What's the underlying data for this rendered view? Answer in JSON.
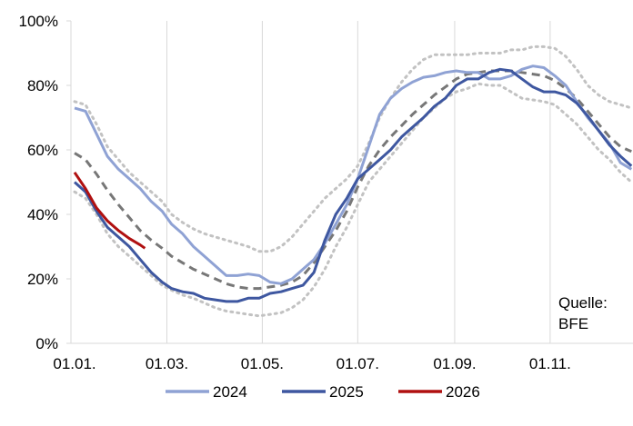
{
  "chart_data": {
    "type": "line",
    "title": "",
    "xlabel": "",
    "ylabel": "",
    "x_tick_labels": [
      "01.01.",
      "01.03.",
      "01.05.",
      "01.07.",
      "01.09.",
      "01.11."
    ],
    "y_tick_labels": [
      "0%",
      "20%",
      "40%",
      "60%",
      "80%",
      "100%"
    ],
    "ylim": [
      0,
      100
    ],
    "y_unit": "%",
    "grid": "vertical",
    "legend_position": "bottom",
    "source_text": [
      "Quelle:",
      "BFE"
    ],
    "series": [
      {
        "name": "2024",
        "color": "#8fa2d4",
        "style": "solid",
        "points": [
          [
            "01.01.",
            73
          ],
          [
            "08.01.",
            72
          ],
          [
            "15.01.",
            65
          ],
          [
            "22.01.",
            58
          ],
          [
            "29.01.",
            54
          ],
          [
            "05.02.",
            51
          ],
          [
            "12.02.",
            48
          ],
          [
            "19.02.",
            44
          ],
          [
            "26.02.",
            41
          ],
          [
            "04.03.",
            37
          ],
          [
            "11.03.",
            34
          ],
          [
            "18.03.",
            30
          ],
          [
            "25.03.",
            27
          ],
          [
            "01.04.",
            24
          ],
          [
            "08.04.",
            21
          ],
          [
            "15.04.",
            21
          ],
          [
            "22.04.",
            21.5
          ],
          [
            "29.04.",
            21
          ],
          [
            "06.05.",
            19
          ],
          [
            "13.05.",
            18.5
          ],
          [
            "20.05.",
            20
          ],
          [
            "27.05.",
            23
          ],
          [
            "03.06.",
            26
          ],
          [
            "10.06.",
            31
          ],
          [
            "17.06.",
            37
          ],
          [
            "24.06.",
            43
          ],
          [
            "01.07.",
            51
          ],
          [
            "08.07.",
            61
          ],
          [
            "15.07.",
            71
          ],
          [
            "22.07.",
            76
          ],
          [
            "29.07.",
            79
          ],
          [
            "05.08.",
            81
          ],
          [
            "12.08.",
            82.5
          ],
          [
            "19.08.",
            83
          ],
          [
            "26.08.",
            84
          ],
          [
            "02.09.",
            84.5
          ],
          [
            "09.09.",
            84
          ],
          [
            "16.09.",
            84
          ],
          [
            "23.09.",
            82
          ],
          [
            "30.09.",
            82
          ],
          [
            "07.10.",
            83
          ],
          [
            "14.10.",
            85
          ],
          [
            "21.10.",
            86
          ],
          [
            "28.10.",
            85.5
          ],
          [
            "04.11.",
            83
          ],
          [
            "11.11.",
            80
          ],
          [
            "18.11.",
            75
          ],
          [
            "25.11.",
            70
          ],
          [
            "02.12.",
            66
          ],
          [
            "09.12.",
            62
          ],
          [
            "16.12.",
            56
          ],
          [
            "23.12.",
            54
          ]
        ]
      },
      {
        "name": "2025",
        "color": "#3e57a0",
        "style": "solid",
        "points": [
          [
            "01.01.",
            50
          ],
          [
            "08.01.",
            47
          ],
          [
            "15.01.",
            41
          ],
          [
            "22.01.",
            36
          ],
          [
            "29.01.",
            33
          ],
          [
            "05.02.",
            30
          ],
          [
            "12.02.",
            26
          ],
          [
            "19.02.",
            22
          ],
          [
            "26.02.",
            19
          ],
          [
            "04.03.",
            17
          ],
          [
            "11.03.",
            16
          ],
          [
            "18.03.",
            15.5
          ],
          [
            "25.03.",
            14
          ],
          [
            "01.04.",
            13.5
          ],
          [
            "08.04.",
            13
          ],
          [
            "15.04.",
            13
          ],
          [
            "22.04.",
            14
          ],
          [
            "29.04.",
            14
          ],
          [
            "06.05.",
            15.5
          ],
          [
            "13.05.",
            16
          ],
          [
            "20.05.",
            17
          ],
          [
            "27.05.",
            18
          ],
          [
            "03.06.",
            22
          ],
          [
            "10.06.",
            32
          ],
          [
            "17.06.",
            40
          ],
          [
            "24.06.",
            45
          ],
          [
            "01.07.",
            51
          ],
          [
            "08.07.",
            54
          ],
          [
            "15.07.",
            57
          ],
          [
            "22.07.",
            60
          ],
          [
            "29.07.",
            64
          ],
          [
            "05.08.",
            67
          ],
          [
            "12.08.",
            70
          ],
          [
            "19.08.",
            73.5
          ],
          [
            "26.08.",
            76
          ],
          [
            "02.09.",
            80
          ],
          [
            "09.09.",
            82
          ],
          [
            "16.09.",
            82
          ],
          [
            "23.09.",
            84
          ],
          [
            "30.09.",
            85
          ],
          [
            "07.10.",
            84.5
          ],
          [
            "14.10.",
            82
          ],
          [
            "21.10.",
            79.5
          ],
          [
            "28.10.",
            78
          ],
          [
            "04.11.",
            78
          ],
          [
            "11.11.",
            77
          ],
          [
            "18.11.",
            74.5
          ],
          [
            "25.11.",
            70.5
          ],
          [
            "02.12.",
            66
          ],
          [
            "09.12.",
            61.5
          ],
          [
            "16.12.",
            58
          ],
          [
            "23.12.",
            55
          ]
        ]
      },
      {
        "name": "2026",
        "color": "#b01010",
        "style": "solid",
        "points": [
          [
            "01.01.",
            53
          ],
          [
            "08.01.",
            48
          ],
          [
            "15.01.",
            42
          ],
          [
            "22.01.",
            38
          ],
          [
            "29.01.",
            35
          ],
          [
            "05.02.",
            32.5
          ],
          [
            "12.02.",
            30.5
          ],
          [
            "15.02.",
            29.5
          ]
        ]
      },
      {
        "color": "#777777",
        "style": "dashed",
        "points": [
          [
            "01.01.",
            59
          ],
          [
            "08.01.",
            57
          ],
          [
            "15.01.",
            52.5
          ],
          [
            "22.01.",
            47.5
          ],
          [
            "29.01.",
            43
          ],
          [
            "05.02.",
            39
          ],
          [
            "12.02.",
            35
          ],
          [
            "19.02.",
            32
          ],
          [
            "26.02.",
            29.5
          ],
          [
            "04.03.",
            27
          ],
          [
            "11.03.",
            25
          ],
          [
            "18.03.",
            23
          ],
          [
            "25.03.",
            21.5
          ],
          [
            "01.04.",
            20
          ],
          [
            "08.04.",
            18.5
          ],
          [
            "15.04.",
            17.5
          ],
          [
            "22.04.",
            17
          ],
          [
            "29.04.",
            17
          ],
          [
            "06.05.",
            17.5
          ],
          [
            "13.05.",
            18
          ],
          [
            "20.05.",
            19
          ],
          [
            "27.05.",
            21
          ],
          [
            "03.06.",
            25
          ],
          [
            "10.06.",
            30
          ],
          [
            "17.06.",
            35
          ],
          [
            "24.06.",
            41
          ],
          [
            "01.07.",
            48.5
          ],
          [
            "08.07.",
            55
          ],
          [
            "15.07.",
            60
          ],
          [
            "22.07.",
            64
          ],
          [
            "29.07.",
            67.5
          ],
          [
            "05.08.",
            71
          ],
          [
            "12.08.",
            74
          ],
          [
            "19.08.",
            77
          ],
          [
            "26.08.",
            79.5
          ],
          [
            "02.09.",
            82
          ],
          [
            "09.09.",
            83.5
          ],
          [
            "16.09.",
            84
          ],
          [
            "23.09.",
            84.5
          ],
          [
            "30.09.",
            84.5
          ],
          [
            "07.10.",
            84.5
          ],
          [
            "14.10.",
            84
          ],
          [
            "21.10.",
            83.5
          ],
          [
            "28.10.",
            83
          ],
          [
            "04.11.",
            81.5
          ],
          [
            "11.11.",
            79
          ],
          [
            "18.11.",
            76
          ],
          [
            "25.11.",
            72
          ],
          [
            "02.12.",
            68
          ],
          [
            "09.12.",
            64
          ],
          [
            "16.12.",
            61
          ],
          [
            "23.12.",
            59.5
          ]
        ]
      },
      {
        "color": "#c2c2c2",
        "style": "dotted",
        "points": [
          [
            "01.01.",
            75
          ],
          [
            "08.01.",
            74
          ],
          [
            "15.01.",
            68
          ],
          [
            "22.01.",
            61
          ],
          [
            "29.01.",
            57
          ],
          [
            "05.02.",
            53
          ],
          [
            "12.02.",
            50
          ],
          [
            "19.02.",
            47
          ],
          [
            "26.02.",
            44
          ],
          [
            "04.03.",
            40
          ],
          [
            "11.03.",
            37.5
          ],
          [
            "18.03.",
            35.5
          ],
          [
            "25.03.",
            34
          ],
          [
            "01.04.",
            33
          ],
          [
            "08.04.",
            32
          ],
          [
            "15.04.",
            31
          ],
          [
            "22.04.",
            30
          ],
          [
            "29.04.",
            28.5
          ],
          [
            "06.05.",
            28.5
          ],
          [
            "13.05.",
            30
          ],
          [
            "20.05.",
            33
          ],
          [
            "27.05.",
            37
          ],
          [
            "03.06.",
            41
          ],
          [
            "10.06.",
            45
          ],
          [
            "17.06.",
            48
          ],
          [
            "24.06.",
            51
          ],
          [
            "01.07.",
            55
          ],
          [
            "08.07.",
            62
          ],
          [
            "15.07.",
            70
          ],
          [
            "22.07.",
            76
          ],
          [
            "29.07.",
            81
          ],
          [
            "05.08.",
            85
          ],
          [
            "12.08.",
            88
          ],
          [
            "19.08.",
            89.5
          ],
          [
            "26.08.",
            89.5
          ],
          [
            "02.09.",
            89.5
          ],
          [
            "09.09.",
            89.5
          ],
          [
            "16.09.",
            90
          ],
          [
            "23.09.",
            90
          ],
          [
            "30.09.",
            90
          ],
          [
            "07.10.",
            91
          ],
          [
            "14.10.",
            91
          ],
          [
            "21.10.",
            92
          ],
          [
            "28.10.",
            92
          ],
          [
            "04.11.",
            91.5
          ],
          [
            "11.11.",
            89
          ],
          [
            "18.11.",
            85
          ],
          [
            "25.11.",
            80
          ],
          [
            "02.12.",
            77
          ],
          [
            "09.12.",
            75
          ],
          [
            "16.12.",
            74
          ],
          [
            "23.12.",
            73
          ]
        ]
      },
      {
        "color": "#c2c2c2",
        "style": "dotted",
        "points": [
          [
            "01.01.",
            47
          ],
          [
            "08.01.",
            45
          ],
          [
            "15.01.",
            40
          ],
          [
            "22.01.",
            34
          ],
          [
            "29.01.",
            30
          ],
          [
            "05.02.",
            27
          ],
          [
            "12.02.",
            24
          ],
          [
            "19.02.",
            21
          ],
          [
            "26.02.",
            18
          ],
          [
            "04.03.",
            16.5
          ],
          [
            "11.03.",
            15
          ],
          [
            "18.03.",
            14
          ],
          [
            "25.03.",
            12.5
          ],
          [
            "01.04.",
            11
          ],
          [
            "08.04.",
            10
          ],
          [
            "15.04.",
            9.5
          ],
          [
            "22.04.",
            9
          ],
          [
            "29.04.",
            8.5
          ],
          [
            "06.05.",
            9
          ],
          [
            "13.05.",
            9.5
          ],
          [
            "20.05.",
            11
          ],
          [
            "27.05.",
            13.5
          ],
          [
            "03.06.",
            17.5
          ],
          [
            "10.06.",
            23
          ],
          [
            "17.06.",
            30
          ],
          [
            "24.06.",
            36
          ],
          [
            "01.07.",
            43
          ],
          [
            "08.07.",
            50
          ],
          [
            "15.07.",
            54
          ],
          [
            "22.07.",
            58
          ],
          [
            "29.07.",
            62
          ],
          [
            "05.08.",
            66
          ],
          [
            "12.08.",
            70
          ],
          [
            "19.08.",
            73
          ],
          [
            "26.08.",
            76
          ],
          [
            "02.09.",
            78
          ],
          [
            "09.09.",
            79
          ],
          [
            "16.09.",
            80.5
          ],
          [
            "23.09.",
            80
          ],
          [
            "30.09.",
            80
          ],
          [
            "07.10.",
            78
          ],
          [
            "14.10.",
            76
          ],
          [
            "21.10.",
            75.5
          ],
          [
            "28.10.",
            75
          ],
          [
            "04.11.",
            74
          ],
          [
            "11.11.",
            71
          ],
          [
            "18.11.",
            68
          ],
          [
            "25.11.",
            64
          ],
          [
            "02.12.",
            60
          ],
          [
            "09.12.",
            57
          ],
          [
            "16.12.",
            53
          ],
          [
            "23.12.",
            50
          ]
        ]
      }
    ]
  }
}
